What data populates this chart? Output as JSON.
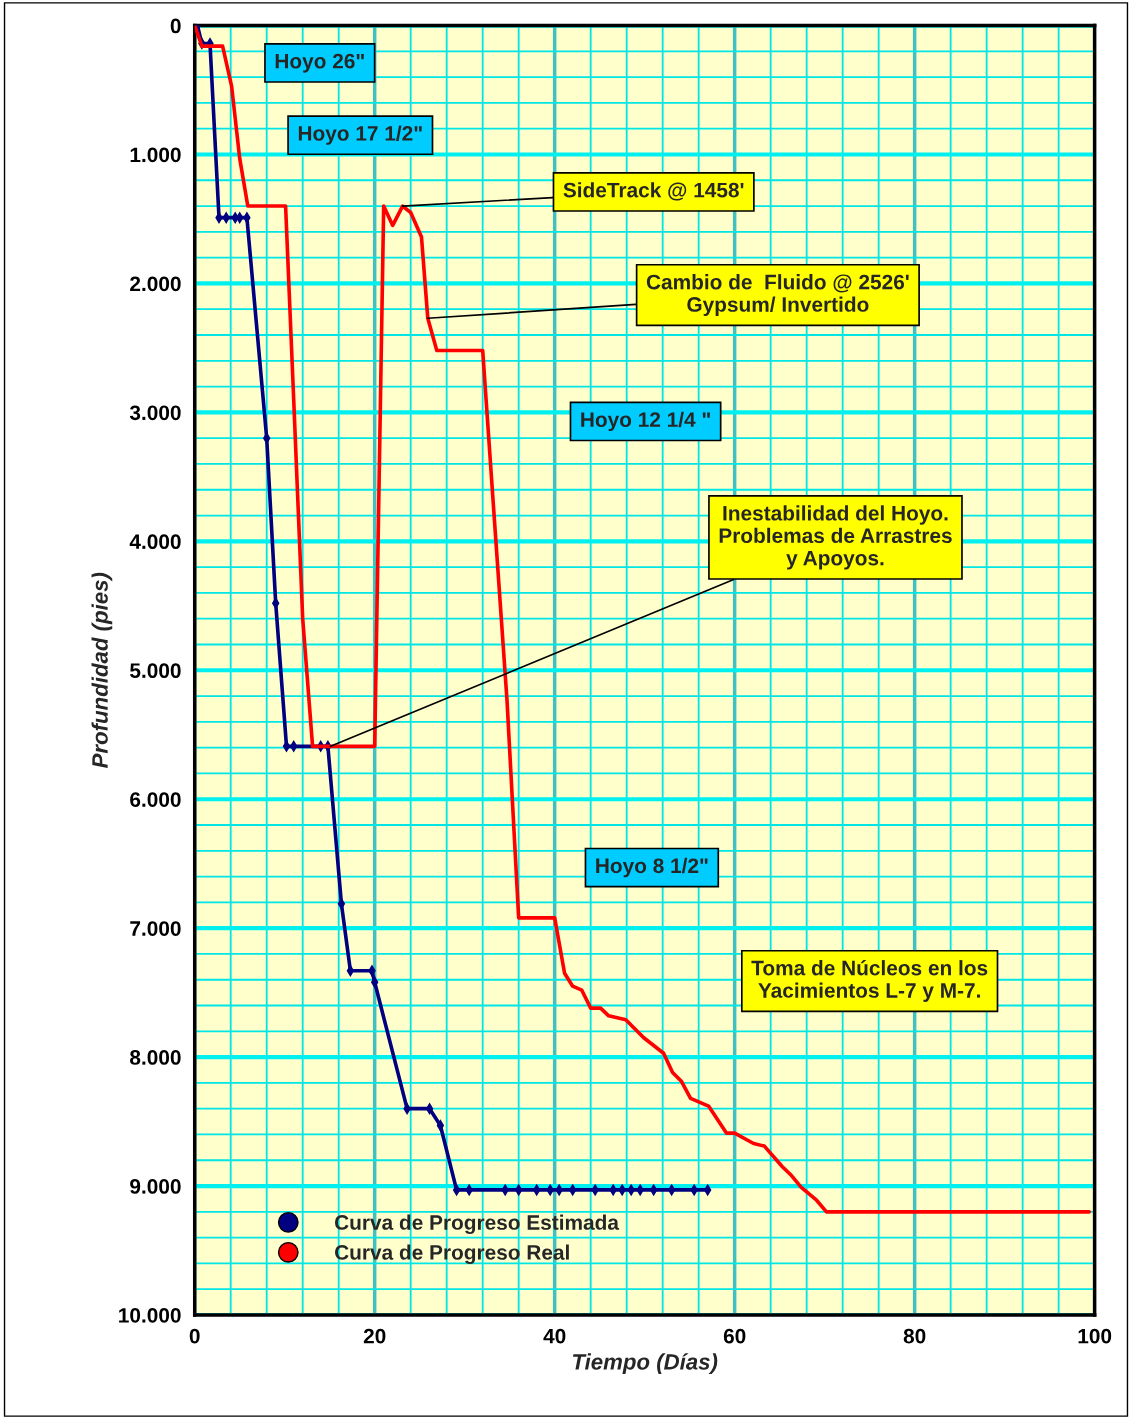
{
  "chart_data": {
    "type": "line",
    "xlabel": "Tiempo (Días)",
    "ylabel": "Profundidad (pies)",
    "xlim": [
      0,
      100
    ],
    "xticks": [
      0,
      {
        "value": 4,
        "label": null
      },
      {
        "value": 8,
        "label": null
      },
      {
        "value": 12,
        "label": null
      },
      {
        "value": 16,
        "label": null
      },
      20,
      {
        "value": 24,
        "label": null
      },
      {
        "value": 28,
        "label": null
      },
      {
        "value": 32,
        "label": null
      },
      {
        "value": 36,
        "label": null
      },
      40,
      {
        "value": 44,
        "label": null
      },
      {
        "value": 48,
        "label": null
      },
      {
        "value": 52,
        "label": null
      },
      {
        "value": 56,
        "label": null
      },
      60,
      {
        "value": 64,
        "label": null
      },
      {
        "value": 68,
        "label": null
      },
      {
        "value": 72,
        "label": null
      },
      {
        "value": 76,
        "label": null
      },
      80,
      {
        "value": 84,
        "label": null
      },
      {
        "value": 88,
        "label": null
      },
      {
        "value": 92,
        "label": null
      },
      {
        "value": 96,
        "label": null
      },
      100
    ],
    "ylim": [
      10000,
      0
    ],
    "yticks": [
      {
        "value": 0,
        "label": "0"
      },
      {
        "value": 200,
        "label": null
      },
      {
        "value": 400,
        "label": null
      },
      {
        "value": 600,
        "label": null
      },
      {
        "value": 800,
        "label": null
      },
      {
        "value": 1000,
        "label": "1.000"
      },
      {
        "value": 1200,
        "label": null
      },
      {
        "value": 1400,
        "label": null
      },
      {
        "value": 1600,
        "label": null
      },
      {
        "value": 1800,
        "label": null
      },
      {
        "value": 2000,
        "label": "2.000"
      },
      {
        "value": 2200,
        "label": null
      },
      {
        "value": 2400,
        "label": null
      },
      {
        "value": 2600,
        "label": null
      },
      {
        "value": 2800,
        "label": null
      },
      {
        "value": 3000,
        "label": "3.000"
      },
      {
        "value": 3200,
        "label": null
      },
      {
        "value": 3400,
        "label": null
      },
      {
        "value": 3600,
        "label": null
      },
      {
        "value": 3800,
        "label": null
      },
      {
        "value": 4000,
        "label": "4.000"
      },
      {
        "value": 4200,
        "label": null
      },
      {
        "value": 4400,
        "label": null
      },
      {
        "value": 4600,
        "label": null
      },
      {
        "value": 4800,
        "label": null
      },
      {
        "value": 5000,
        "label": "5.000"
      },
      {
        "value": 5200,
        "label": null
      },
      {
        "value": 5400,
        "label": null
      },
      {
        "value": 5600,
        "label": null
      },
      {
        "value": 5800,
        "label": null
      },
      {
        "value": 6000,
        "label": "6.000"
      },
      {
        "value": 6200,
        "label": null
      },
      {
        "value": 6400,
        "label": null
      },
      {
        "value": 6600,
        "label": null
      },
      {
        "value": 6800,
        "label": null
      },
      {
        "value": 7000,
        "label": "7.000"
      },
      {
        "value": 7200,
        "label": null
      },
      {
        "value": 7400,
        "label": null
      },
      {
        "value": 7600,
        "label": null
      },
      {
        "value": 7800,
        "label": null
      },
      {
        "value": 8000,
        "label": "8.000"
      },
      {
        "value": 8200,
        "label": null
      },
      {
        "value": 8400,
        "label": null
      },
      {
        "value": 8600,
        "label": null
      },
      {
        "value": 8800,
        "label": null
      },
      {
        "value": 9000,
        "label": "9.000"
      },
      {
        "value": 9200,
        "label": null
      },
      {
        "value": 9400,
        "label": null
      },
      {
        "value": 9600,
        "label": null
      },
      {
        "value": 9800,
        "label": null
      },
      {
        "value": 10000,
        "label": "10.000"
      }
    ],
    "grid": true,
    "legend": "bottom left",
    "series": [
      {
        "name": "Curva de Progreso Estimada",
        "color": "#000080",
        "marker": "diamond",
        "x": [
          0.3,
          0.8,
          1.7,
          2.7,
          3.5,
          4.5,
          5.0,
          5.8,
          8.0,
          9.0,
          10.2,
          11.0,
          14.0,
          14.8,
          16.3,
          17.3,
          19.7,
          20.0,
          23.6,
          26.1,
          27.3,
          29.1,
          30.5,
          34.5,
          36.0,
          38.0,
          39.5,
          40.5,
          42.0,
          44.5,
          46.5,
          47.5,
          48.5,
          49.5,
          51.0,
          53.0,
          55.5,
          57.0
        ],
        "values": [
          0,
          140,
          140,
          1490,
          1490,
          1490,
          1490,
          1490,
          3200,
          4480,
          5590,
          5590,
          5590,
          5590,
          6810,
          7330,
          7330,
          7420,
          8400,
          8400,
          8530,
          9030,
          9030,
          9030,
          9030,
          9030,
          9030,
          9030,
          9030,
          9030,
          9030,
          9030,
          9030,
          9030,
          9030,
          9030,
          9030,
          9030
        ]
      },
      {
        "name": "Curva de Progreso Real",
        "color": "#ff0000",
        "marker": "none",
        "x": [
          0,
          0.8,
          3.1,
          4.1,
          5.0,
          5.9,
          10.1,
          11.0,
          12.0,
          13.1,
          20.0,
          21.0,
          22.0,
          23.1,
          24.0,
          25.2,
          25.9,
          26.9,
          32.0,
          33.0,
          34.7,
          36.0,
          40.0,
          41.1,
          42.0,
          43.0,
          44.0,
          45.1,
          46.0,
          47.9,
          49.9,
          52.1,
          53.1,
          54.1,
          55.1,
          57.1,
          59.1,
          60.0,
          62.1,
          63.3,
          65.3,
          66.2,
          67.4,
          69.1,
          70.2,
          99.4
        ],
        "values": [
          0,
          160,
          160,
          470,
          1030,
          1400,
          1400,
          2900,
          4600,
          5590,
          5590,
          1400,
          1550,
          1400,
          1450,
          1640,
          2270,
          2520,
          2520,
          3530,
          5230,
          6920,
          6920,
          7350,
          7450,
          7480,
          7620,
          7620,
          7680,
          7710,
          7850,
          7970,
          8120,
          8190,
          8320,
          8380,
          8590,
          8590,
          8670,
          8690,
          8850,
          8910,
          9010,
          9110,
          9200,
          9200
        ]
      }
    ],
    "annotations": [
      "Hoyo 26\"",
      "Hoyo 17 1/2\"",
      {
        "text": "SideTrack @ 1458'",
        "x": 23.1,
        "y": 1400
      },
      {
        "text": "Cambio de  Fluido @ 2526'\nGypsum/ Invertido",
        "x": 25.9,
        "y": 2270
      },
      "Hoyo 12 1/4 \"",
      {
        "text": "Inestabilidad del Hoyo.\nProblemas de Arrastres\ny Apoyos.",
        "x": 15.1,
        "y": 5590
      },
      "Hoyo 8 1/2\"",
      "Toma de Núcleos en los\nYacimientos L-7 y M-7."
    ]
  }
}
